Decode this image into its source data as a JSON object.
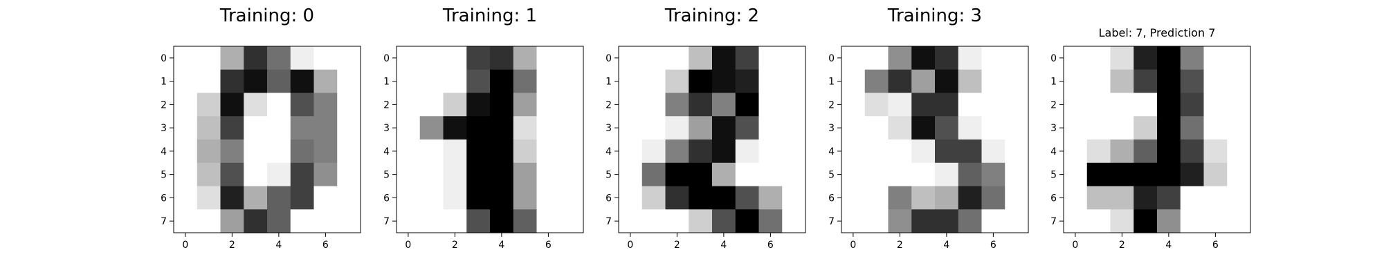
{
  "chart_data": [
    {
      "type": "heatmap",
      "title": "Training: 0",
      "xticks": [
        0,
        2,
        4,
        6
      ],
      "yticks": [
        0,
        1,
        2,
        3,
        4,
        5,
        6,
        7
      ],
      "xlim": [
        -0.5,
        7.5
      ],
      "ylim": [
        7.5,
        -0.5
      ],
      "colormap": "gray_r",
      "value_range": [
        0,
        16
      ],
      "matrix": [
        [
          0,
          0,
          5,
          13,
          9,
          1,
          0,
          0
        ],
        [
          0,
          0,
          13,
          15,
          10,
          15,
          5,
          0
        ],
        [
          0,
          3,
          15,
          2,
          0,
          11,
          8,
          0
        ],
        [
          0,
          4,
          12,
          0,
          0,
          8,
          8,
          0
        ],
        [
          0,
          5,
          8,
          0,
          0,
          9,
          8,
          0
        ],
        [
          0,
          4,
          11,
          0,
          1,
          12,
          7,
          0
        ],
        [
          0,
          2,
          14,
          5,
          10,
          12,
          0,
          0
        ],
        [
          0,
          0,
          6,
          13,
          10,
          0,
          0,
          0
        ]
      ]
    },
    {
      "type": "heatmap",
      "title": "Training: 1",
      "xticks": [
        0,
        2,
        4,
        6
      ],
      "yticks": [
        0,
        1,
        2,
        3,
        4,
        5,
        6,
        7
      ],
      "xlim": [
        -0.5,
        7.5
      ],
      "ylim": [
        7.5,
        -0.5
      ],
      "colormap": "gray_r",
      "value_range": [
        0,
        16
      ],
      "matrix": [
        [
          0,
          0,
          0,
          12,
          13,
          5,
          0,
          0
        ],
        [
          0,
          0,
          0,
          11,
          16,
          9,
          0,
          0
        ],
        [
          0,
          0,
          3,
          15,
          16,
          6,
          0,
          0
        ],
        [
          0,
          7,
          15,
          16,
          16,
          2,
          0,
          0
        ],
        [
          0,
          0,
          1,
          16,
          16,
          3,
          0,
          0
        ],
        [
          0,
          0,
          1,
          16,
          16,
          6,
          0,
          0
        ],
        [
          0,
          0,
          1,
          16,
          16,
          6,
          0,
          0
        ],
        [
          0,
          0,
          0,
          11,
          16,
          10,
          0,
          0
        ]
      ]
    },
    {
      "type": "heatmap",
      "title": "Training: 2",
      "xticks": [
        0,
        2,
        4,
        6
      ],
      "yticks": [
        0,
        1,
        2,
        3,
        4,
        5,
        6,
        7
      ],
      "xlim": [
        -0.5,
        7.5
      ],
      "ylim": [
        7.5,
        -0.5
      ],
      "colormap": "gray_r",
      "value_range": [
        0,
        16
      ],
      "matrix": [
        [
          0,
          0,
          0,
          4,
          15,
          12,
          0,
          0
        ],
        [
          0,
          0,
          3,
          16,
          15,
          14,
          0,
          0
        ],
        [
          0,
          0,
          8,
          13,
          8,
          16,
          0,
          0
        ],
        [
          0,
          0,
          1,
          6,
          15,
          11,
          0,
          0
        ],
        [
          0,
          1,
          8,
          13,
          15,
          1,
          0,
          0
        ],
        [
          0,
          9,
          16,
          16,
          5,
          0,
          0,
          0
        ],
        [
          0,
          3,
          13,
          16,
          16,
          11,
          5,
          0
        ],
        [
          0,
          0,
          0,
          3,
          11,
          16,
          9,
          0
        ]
      ]
    },
    {
      "type": "heatmap",
      "title": "Training: 3",
      "xticks": [
        0,
        2,
        4,
        6
      ],
      "yticks": [
        0,
        1,
        2,
        3,
        4,
        5,
        6,
        7
      ],
      "xlim": [
        -0.5,
        7.5
      ],
      "ylim": [
        7.5,
        -0.5
      ],
      "colormap": "gray_r",
      "value_range": [
        0,
        16
      ],
      "matrix": [
        [
          0,
          0,
          7,
          15,
          13,
          1,
          0,
          0
        ],
        [
          0,
          8,
          13,
          6,
          15,
          4,
          0,
          0
        ],
        [
          0,
          2,
          1,
          13,
          13,
          0,
          0,
          0
        ],
        [
          0,
          0,
          2,
          15,
          11,
          1,
          0,
          0
        ],
        [
          0,
          0,
          0,
          1,
          12,
          12,
          1,
          0
        ],
        [
          0,
          0,
          0,
          0,
          1,
          10,
          8,
          0
        ],
        [
          0,
          0,
          8,
          4,
          5,
          14,
          9,
          0
        ],
        [
          0,
          0,
          7,
          13,
          13,
          9,
          0,
          0
        ]
      ]
    },
    {
      "type": "heatmap",
      "title": "Label: 7, Prediction 7",
      "xticks": [
        0,
        2,
        4,
        6
      ],
      "yticks": [
        0,
        1,
        2,
        3,
        4,
        5,
        6,
        7
      ],
      "xlim": [
        -0.5,
        7.5
      ],
      "ylim": [
        7.5,
        -0.5
      ],
      "colormap": "gray_r",
      "value_range": [
        0,
        16
      ],
      "matrix": [
        [
          0,
          0,
          2,
          14,
          16,
          8,
          0,
          0
        ],
        [
          0,
          0,
          4,
          12,
          16,
          11,
          0,
          0
        ],
        [
          0,
          0,
          0,
          0,
          16,
          12,
          0,
          0
        ],
        [
          0,
          0,
          0,
          3,
          16,
          9,
          0,
          0
        ],
        [
          0,
          2,
          5,
          10,
          16,
          12,
          2,
          0
        ],
        [
          0,
          16,
          16,
          16,
          16,
          14,
          3,
          0
        ],
        [
          0,
          4,
          4,
          14,
          12,
          0,
          0,
          0
        ],
        [
          0,
          0,
          2,
          16,
          7,
          0,
          0,
          0
        ]
      ]
    }
  ]
}
